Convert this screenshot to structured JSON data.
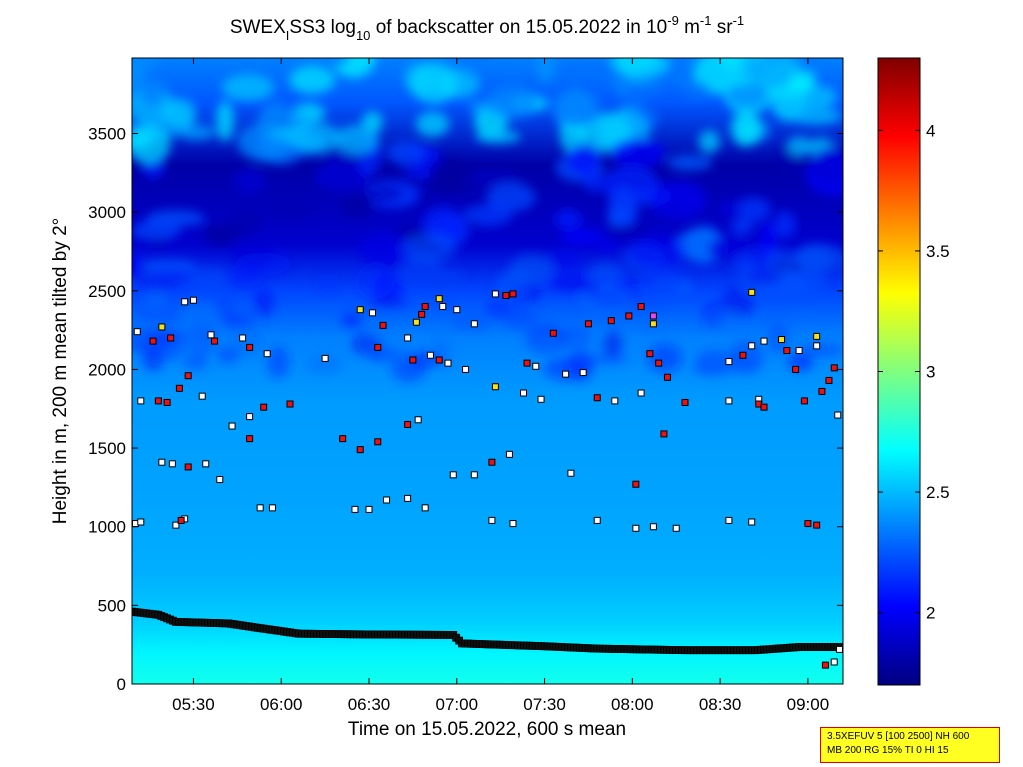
{
  "chart_data": {
    "type": "heatmap",
    "title_prefix": "SWEX",
    "title_sub1": "I",
    "title_mid": "SS3 log",
    "title_sub2": "10",
    "title_mid2": " of backscatter on 15.05.2022 in 10",
    "title_sup1": "-9",
    "title_mid3": " m",
    "title_sup2": "-1",
    "title_mid4": " sr",
    "title_sup3": "-1",
    "xlabel": "Time on 15.05.2022, 600 s mean",
    "ylabel": "Height in m, 200 m mean tilted by 2°",
    "x_range_hours": [
      5.15,
      9.2
    ],
    "x_ticks": [
      {
        "value": 5.5,
        "label": "05:30"
      },
      {
        "value": 6.0,
        "label": "06:00"
      },
      {
        "value": 6.5,
        "label": "06:30"
      },
      {
        "value": 7.0,
        "label": "07:00"
      },
      {
        "value": 7.5,
        "label": "07:30"
      },
      {
        "value": 8.0,
        "label": "08:00"
      },
      {
        "value": 8.5,
        "label": "08:30"
      },
      {
        "value": 9.0,
        "label": "09:00"
      }
    ],
    "y_range": [
      0,
      3980
    ],
    "y_ticks": [
      {
        "value": 0,
        "label": "0"
      },
      {
        "value": 500,
        "label": "500"
      },
      {
        "value": 1000,
        "label": "1000"
      },
      {
        "value": 1500,
        "label": "1500"
      },
      {
        "value": 2000,
        "label": "2000"
      },
      {
        "value": 2500,
        "label": "2500"
      },
      {
        "value": 3000,
        "label": "3000"
      },
      {
        "value": 3500,
        "label": "3500"
      }
    ],
    "colorbar_range": [
      1.7,
      4.3
    ],
    "colorbar_ticks": [
      {
        "value": 2.0,
        "label": "2"
      },
      {
        "value": 2.5,
        "label": "2.5"
      },
      {
        "value": 3.0,
        "label": "3"
      },
      {
        "value": 3.5,
        "label": "3.5"
      },
      {
        "value": 4.0,
        "label": "4"
      }
    ],
    "colormap": "jet",
    "background_profile": [
      {
        "height": 0,
        "value": 2.72
      },
      {
        "height": 200,
        "value": 2.65
      },
      {
        "height": 400,
        "value": 2.55
      },
      {
        "height": 700,
        "value": 2.47
      },
      {
        "height": 1200,
        "value": 2.44
      },
      {
        "height": 1800,
        "value": 2.42
      },
      {
        "height": 2200,
        "value": 2.35
      },
      {
        "height": 2500,
        "value": 2.2
      },
      {
        "height": 2800,
        "value": 1.9
      },
      {
        "height": 3300,
        "value": 1.8
      },
      {
        "height": 3700,
        "value": 2.25
      },
      {
        "height": 3980,
        "value": 2.35
      }
    ],
    "mixing_layer": {
      "name": "",
      "points": [
        {
          "t": 5.15,
          "h": 460
        },
        {
          "t": 5.3,
          "h": 440
        },
        {
          "t": 5.4,
          "h": 395
        },
        {
          "t": 5.7,
          "h": 385
        },
        {
          "t": 5.85,
          "h": 360
        },
        {
          "t": 6.1,
          "h": 320
        },
        {
          "t": 6.5,
          "h": 315
        },
        {
          "t": 6.98,
          "h": 312
        },
        {
          "t": 7.03,
          "h": 258
        },
        {
          "t": 7.5,
          "h": 240
        },
        {
          "t": 7.8,
          "h": 225
        },
        {
          "t": 8.3,
          "h": 215
        },
        {
          "t": 8.7,
          "h": 215
        },
        {
          "t": 8.95,
          "h": 235
        },
        {
          "t": 9.2,
          "h": 235
        }
      ]
    },
    "cloud_layers": [
      {
        "name": "",
        "color": "#ffffff",
        "points": [
          {
            "t": 5.17,
            "h": 1020
          },
          {
            "t": 5.2,
            "h": 1030
          },
          {
            "t": 5.4,
            "h": 1010
          },
          {
            "t": 5.45,
            "h": 1050
          },
          {
            "t": 5.88,
            "h": 1120
          },
          {
            "t": 5.95,
            "h": 1120
          },
          {
            "t": 6.42,
            "h": 1110
          },
          {
            "t": 6.5,
            "h": 1110
          },
          {
            "t": 6.6,
            "h": 1170
          },
          {
            "t": 6.72,
            "h": 1180
          },
          {
            "t": 6.82,
            "h": 1120
          },
          {
            "t": 7.2,
            "h": 1040
          },
          {
            "t": 7.32,
            "h": 1020
          },
          {
            "t": 7.8,
            "h": 1040
          },
          {
            "t": 8.02,
            "h": 990
          },
          {
            "t": 8.12,
            "h": 1000
          },
          {
            "t": 8.25,
            "h": 990
          },
          {
            "t": 8.55,
            "h": 1040
          },
          {
            "t": 8.68,
            "h": 1030
          },
          {
            "t": 5.32,
            "h": 1410
          },
          {
            "t": 5.38,
            "h": 1400
          },
          {
            "t": 5.57,
            "h": 1400
          },
          {
            "t": 5.65,
            "h": 1300
          },
          {
            "t": 6.98,
            "h": 1330
          },
          {
            "t": 7.1,
            "h": 1330
          },
          {
            "t": 7.3,
            "h": 1460
          },
          {
            "t": 7.65,
            "h": 1340
          },
          {
            "t": 5.2,
            "h": 1800
          },
          {
            "t": 5.55,
            "h": 1830
          },
          {
            "t": 5.72,
            "h": 1640
          },
          {
            "t": 5.82,
            "h": 1700
          },
          {
            "t": 6.78,
            "h": 1680
          },
          {
            "t": 7.38,
            "h": 1850
          },
          {
            "t": 7.48,
            "h": 1810
          },
          {
            "t": 7.9,
            "h": 1800
          },
          {
            "t": 8.05,
            "h": 1850
          },
          {
            "t": 8.55,
            "h": 1800
          },
          {
            "t": 8.72,
            "h": 1810
          },
          {
            "t": 9.17,
            "h": 1710
          },
          {
            "t": 5.18,
            "h": 2240
          },
          {
            "t": 5.6,
            "h": 2220
          },
          {
            "t": 5.78,
            "h": 2200
          },
          {
            "t": 5.92,
            "h": 2100
          },
          {
            "t": 6.25,
            "h": 2070
          },
          {
            "t": 6.72,
            "h": 2200
          },
          {
            "t": 6.95,
            "h": 2040
          },
          {
            "t": 7.05,
            "h": 2000
          },
          {
            "t": 7.1,
            "h": 2290
          },
          {
            "t": 7.45,
            "h": 2020
          },
          {
            "t": 7.62,
            "h": 1970
          },
          {
            "t": 7.72,
            "h": 1980
          },
          {
            "t": 8.68,
            "h": 2150
          },
          {
            "t": 8.75,
            "h": 2180
          },
          {
            "t": 8.95,
            "h": 2120
          },
          {
            "t": 9.05,
            "h": 2150
          },
          {
            "t": 5.45,
            "h": 2430
          },
          {
            "t": 5.5,
            "h": 2440
          },
          {
            "t": 6.52,
            "h": 2360
          },
          {
            "t": 6.92,
            "h": 2400
          },
          {
            "t": 7.0,
            "h": 2380
          },
          {
            "t": 7.22,
            "h": 2480
          },
          {
            "t": 7.28,
            "h": 2470
          },
          {
            "t": 9.18,
            "h": 220
          },
          {
            "t": 9.15,
            "h": 140
          },
          {
            "t": 8.55,
            "h": 2050
          },
          {
            "t": 6.85,
            "h": 2090
          }
        ]
      },
      {
        "name": "",
        "color": "#ee1111",
        "points": [
          {
            "t": 5.27,
            "h": 2180
          },
          {
            "t": 5.37,
            "h": 2200
          },
          {
            "t": 5.62,
            "h": 2180
          },
          {
            "t": 5.82,
            "h": 2140
          },
          {
            "t": 5.42,
            "h": 1880
          },
          {
            "t": 5.47,
            "h": 1960
          },
          {
            "t": 5.3,
            "h": 1800
          },
          {
            "t": 5.35,
            "h": 1790
          },
          {
            "t": 5.47,
            "h": 1380
          },
          {
            "t": 5.43,
            "h": 1040
          },
          {
            "t": 5.82,
            "h": 1560
          },
          {
            "t": 5.9,
            "h": 1760
          },
          {
            "t": 6.05,
            "h": 1780
          },
          {
            "t": 6.35,
            "h": 1560
          },
          {
            "t": 6.45,
            "h": 1490
          },
          {
            "t": 6.55,
            "h": 1540
          },
          {
            "t": 6.55,
            "h": 2140
          },
          {
            "t": 6.58,
            "h": 2280
          },
          {
            "t": 6.75,
            "h": 2060
          },
          {
            "t": 6.8,
            "h": 2350
          },
          {
            "t": 6.82,
            "h": 2400
          },
          {
            "t": 6.72,
            "h": 1650
          },
          {
            "t": 7.2,
            "h": 1410
          },
          {
            "t": 7.28,
            "h": 2470
          },
          {
            "t": 7.32,
            "h": 2480
          },
          {
            "t": 7.4,
            "h": 2040
          },
          {
            "t": 7.55,
            "h": 2230
          },
          {
            "t": 7.75,
            "h": 2290
          },
          {
            "t": 7.8,
            "h": 1820
          },
          {
            "t": 7.88,
            "h": 2310
          },
          {
            "t": 7.98,
            "h": 2340
          },
          {
            "t": 8.05,
            "h": 2400
          },
          {
            "t": 8.02,
            "h": 1270
          },
          {
            "t": 8.1,
            "h": 2100
          },
          {
            "t": 8.15,
            "h": 2040
          },
          {
            "t": 8.18,
            "h": 1590
          },
          {
            "t": 8.2,
            "h": 1950
          },
          {
            "t": 8.3,
            "h": 1790
          },
          {
            "t": 8.63,
            "h": 2090
          },
          {
            "t": 8.72,
            "h": 1780
          },
          {
            "t": 8.75,
            "h": 1760
          },
          {
            "t": 8.88,
            "h": 2120
          },
          {
            "t": 8.93,
            "h": 2000
          },
          {
            "t": 9.0,
            "h": 1020
          },
          {
            "t": 9.05,
            "h": 1010
          },
          {
            "t": 9.08,
            "h": 1860
          },
          {
            "t": 9.12,
            "h": 1930
          },
          {
            "t": 9.15,
            "h": 2010
          },
          {
            "t": 9.1,
            "h": 120
          },
          {
            "t": 8.98,
            "h": 1800
          },
          {
            "t": 6.9,
            "h": 2060
          }
        ]
      },
      {
        "name": "",
        "color": "#f5e01a",
        "points": [
          {
            "t": 5.32,
            "h": 2270
          },
          {
            "t": 6.45,
            "h": 2380
          },
          {
            "t": 6.77,
            "h": 2300
          },
          {
            "t": 6.9,
            "h": 2450
          },
          {
            "t": 7.22,
            "h": 1890
          },
          {
            "t": 8.12,
            "h": 2290
          },
          {
            "t": 8.68,
            "h": 2490
          },
          {
            "t": 8.85,
            "h": 2190
          },
          {
            "t": 9.05,
            "h": 2210
          }
        ]
      },
      {
        "name": "",
        "color": "#ee44ee",
        "points": [
          {
            "t": 8.12,
            "h": 2340
          }
        ]
      }
    ]
  },
  "infobox": {
    "line1": "3.5XEFUV 5 [100 2500] NH 600",
    "line2": "MB 200 RG 15% TI 0 HI 15"
  }
}
